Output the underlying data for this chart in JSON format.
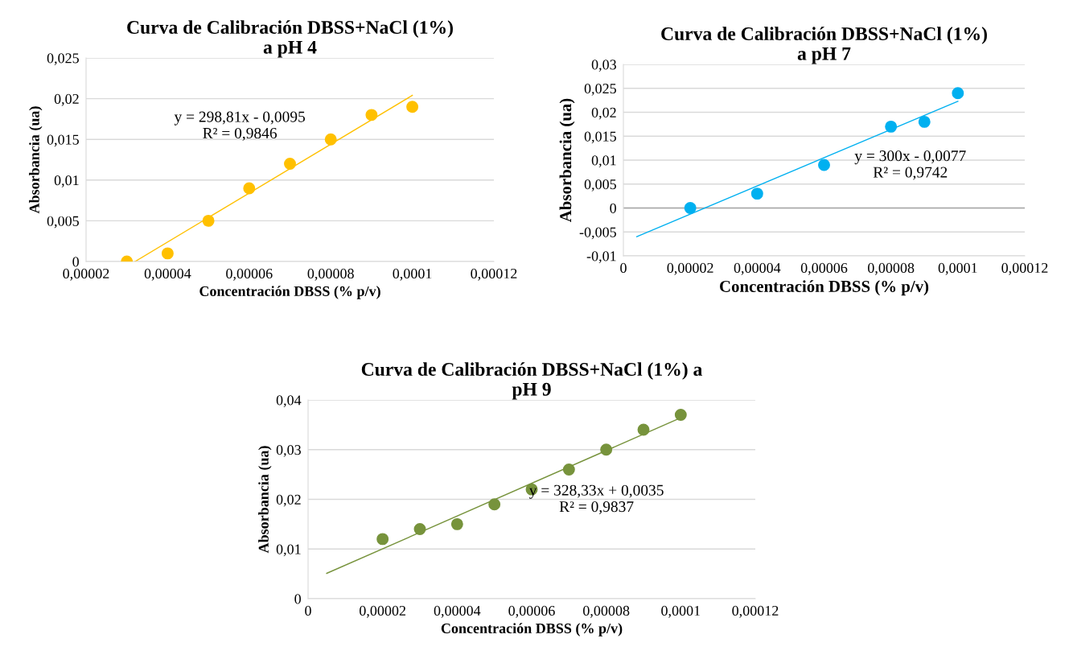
{
  "chart_data": [
    {
      "type": "scatter",
      "title": "Curva de Calibración DBSS+NaCl (1%)\na pH 4",
      "xlabel": "Concentración DBSS (% p/v)",
      "ylabel": "Absorbancia (ua)",
      "x": [
        3e-05,
        4e-05,
        5e-05,
        6e-05,
        7e-05,
        8e-05,
        9e-05,
        0.0001
      ],
      "series": [
        {
          "marker": "circle",
          "color": "#ffc000",
          "values": [
            0,
            0.001,
            0.005,
            0.009,
            0.012,
            0.015,
            0.018,
            0.019
          ]
        },
        {
          "type": "line",
          "color": "#ffc000",
          "x": [
            3.2e-05,
            0.0001
          ],
          "values": [
            0,
            0.0204
          ]
        }
      ],
      "xlim": [
        2e-05,
        0.00012
      ],
      "xticks": [
        {
          "value": 2e-05,
          "label": "0,00002"
        },
        {
          "value": 4e-05,
          "label": "0,00004"
        },
        {
          "value": 6e-05,
          "label": "0,00006"
        },
        {
          "value": 8e-05,
          "label": "0,00008"
        },
        {
          "value": 0.0001,
          "label": "0,0001"
        },
        {
          "value": 0.00012,
          "label": "0,00012"
        }
      ],
      "ylim": [
        0,
        0.025
      ],
      "yticks": [
        0,
        {
          "value": 0.005,
          "label": "0,005"
        },
        {
          "value": 0.01,
          "label": "0,01"
        },
        {
          "value": 0.015,
          "label": "0,015"
        },
        {
          "value": 0.02,
          "label": "0,02"
        },
        {
          "value": 0.025,
          "label": "0,025"
        }
      ],
      "grid": "y",
      "annotations": [
        "y = 298,81x - 0,0095\nR² = 0,9846"
      ]
    },
    {
      "type": "scatter",
      "title": "Curva de Calibración DBSS+NaCl (1%)\na pH 7",
      "xlabel": "Concentración DBSS (% p/v)",
      "ylabel": "Absorbancia (ua)",
      "x": [
        2e-05,
        4e-05,
        6e-05,
        8e-05,
        9e-05,
        0.0001
      ],
      "series": [
        {
          "marker": "circle",
          "color": "#00b0f0",
          "values": [
            0,
            0.003,
            0.009,
            0.017,
            0.018,
            0.024
          ]
        },
        {
          "type": "line",
          "color": "#00b0f0",
          "x": [
            4e-06,
            0.0001
          ],
          "values": [
            -0.006,
            0.0223
          ]
        }
      ],
      "xlim": [
        0,
        0.00012
      ],
      "xticks": [
        0,
        {
          "value": 2e-05,
          "label": "0,00002"
        },
        {
          "value": 4e-05,
          "label": "0,00004"
        },
        {
          "value": 6e-05,
          "label": "0,00006"
        },
        {
          "value": 8e-05,
          "label": "0,00008"
        },
        {
          "value": 0.0001,
          "label": "0,0001"
        },
        {
          "value": 0.00012,
          "label": "0,00012"
        }
      ],
      "ylim": [
        -0.01,
        0.03
      ],
      "yticks": [
        {
          "value": -0.01,
          "label": "-0,01"
        },
        {
          "value": -0.005,
          "label": "-0,005"
        },
        0,
        {
          "value": 0.005,
          "label": "0,005"
        },
        {
          "value": 0.01,
          "label": "0,01"
        },
        {
          "value": 0.015,
          "label": "0,015"
        },
        {
          "value": 0.02,
          "label": "0,02"
        },
        {
          "value": 0.025,
          "label": "0,025"
        },
        {
          "value": 0.03,
          "label": "0,03"
        }
      ],
      "grid": "y",
      "ref_lines": [
        {
          "axis": "y",
          "value": 0,
          "color": "#a6a6a6"
        }
      ],
      "annotations": [
        "y = 300x - 0,0077\nR² = 0,9742"
      ]
    },
    {
      "type": "scatter",
      "title": "Curva de Calibración DBSS+NaCl (1%) a\npH 9",
      "xlabel": "Concentración DBSS (% p/v)",
      "ylabel": "Absorbancia (ua)",
      "x": [
        2e-05,
        3e-05,
        4e-05,
        5e-05,
        6e-05,
        7e-05,
        8e-05,
        9e-05,
        0.0001
      ],
      "series": [
        {
          "marker": "circle",
          "color": "#77933c",
          "values": [
            0.012,
            0.014,
            0.015,
            0.019,
            0.022,
            0.026,
            0.03,
            0.034,
            0.037
          ]
        },
        {
          "type": "line",
          "color": "#77933c",
          "x": [
            5e-06,
            0.0001
          ],
          "values": [
            0.0051,
            0.0364
          ]
        }
      ],
      "xlim": [
        0,
        0.00012
      ],
      "xticks": [
        0,
        {
          "value": 2e-05,
          "label": "0,00002"
        },
        {
          "value": 4e-05,
          "label": "0,00004"
        },
        {
          "value": 6e-05,
          "label": "0,00006"
        },
        {
          "value": 8e-05,
          "label": "0,00008"
        },
        {
          "value": 0.0001,
          "label": "0,0001"
        },
        {
          "value": 0.00012,
          "label": "0,00012"
        }
      ],
      "ylim": [
        0,
        0.04
      ],
      "yticks": [
        0,
        {
          "value": 0.01,
          "label": "0,01"
        },
        {
          "value": 0.02,
          "label": "0,02"
        },
        {
          "value": 0.03,
          "label": "0,03"
        },
        {
          "value": 0.04,
          "label": "0,04"
        }
      ],
      "grid": "y",
      "annotations": [
        "y = 328,33x + 0,0035\nR² = 0,9837"
      ]
    }
  ]
}
